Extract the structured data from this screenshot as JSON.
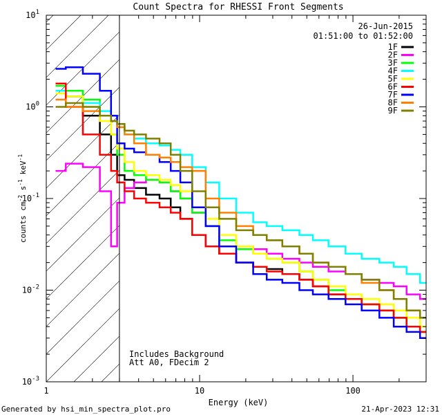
{
  "chart_data": {
    "type": "line",
    "title": "Count Spectra for RHESSI Front Segments",
    "xlabel": "Energy (keV)",
    "ylabel_parts": [
      "counts cm",
      "-2",
      " s",
      "-1",
      " keV",
      "-1"
    ],
    "xscale": "log",
    "yscale": "log",
    "xlim": [
      1,
      300
    ],
    "ylim": [
      0.001,
      10
    ],
    "x_ticks": [
      {
        "value": 1,
        "label": "1"
      },
      {
        "value": 10,
        "label": "10"
      },
      {
        "value": 100,
        "label": "100"
      }
    ],
    "y_ticks": [
      {
        "value": 0.001,
        "base": "10",
        "exp": "-3"
      },
      {
        "value": 0.01,
        "base": "10",
        "exp": "-2"
      },
      {
        "value": 0.1,
        "base": "10",
        "exp": "-1"
      },
      {
        "value": 1,
        "base": "10",
        "exp": "0"
      },
      {
        "value": 10,
        "base": "10",
        "exp": "1"
      }
    ],
    "date": "26-Jun-2015",
    "time_range": "01:51:00 to 01:52:00",
    "annotations": [
      "Includes Background",
      "Att A0, FDecim 2"
    ],
    "hatched_region": [
      1,
      3
    ],
    "x": [
      1.2,
      1.5,
      2,
      2.5,
      2.8,
      3,
      3.5,
      4,
      5,
      6,
      7,
      8,
      10,
      12,
      15,
      20,
      25,
      30,
      40,
      50,
      60,
      80,
      100,
      130,
      170,
      200,
      250,
      300
    ],
    "series": [
      {
        "name": "1F",
        "color": "#000000",
        "values": [
          1.5,
          1.3,
          0.8,
          0.5,
          0.3,
          0.18,
          0.16,
          0.13,
          0.11,
          0.1,
          0.08,
          0.06,
          0.04,
          0.03,
          0.025,
          0.02,
          0.018,
          0.017,
          0.015,
          0.013,
          0.011,
          0.009,
          0.008,
          0.007,
          0.006,
          0.005,
          0.004,
          0.0035
        ]
      },
      {
        "name": "2F",
        "color": "#ff00ff",
        "values": [
          0.2,
          0.24,
          0.22,
          0.12,
          0.03,
          0.09,
          0.13,
          0.15,
          0.16,
          0.15,
          0.12,
          0.1,
          0.07,
          0.05,
          0.03,
          0.03,
          0.028,
          0.025,
          0.022,
          0.02,
          0.018,
          0.016,
          0.015,
          0.013,
          0.012,
          0.011,
          0.009,
          0.008
        ]
      },
      {
        "name": "3F",
        "color": "#00ff00",
        "values": [
          1.7,
          1.5,
          1.2,
          0.8,
          0.5,
          0.3,
          0.2,
          0.18,
          0.16,
          0.15,
          0.12,
          0.1,
          0.07,
          0.05,
          0.035,
          0.028,
          0.025,
          0.022,
          0.02,
          0.016,
          0.013,
          0.01,
          0.008,
          0.007,
          0.006,
          0.005,
          0.004,
          0.0035
        ]
      },
      {
        "name": "4F",
        "color": "#00ffff",
        "values": [
          1.5,
          1.3,
          1.1,
          0.9,
          0.8,
          0.6,
          0.5,
          0.45,
          0.4,
          0.38,
          0.34,
          0.3,
          0.22,
          0.15,
          0.1,
          0.07,
          0.055,
          0.05,
          0.045,
          0.04,
          0.035,
          0.03,
          0.025,
          0.022,
          0.02,
          0.018,
          0.015,
          0.012
        ]
      },
      {
        "name": "5F",
        "color": "#ffff00",
        "values": [
          1.4,
          1.3,
          1.0,
          0.7,
          0.5,
          0.35,
          0.25,
          0.2,
          0.18,
          0.16,
          0.14,
          0.12,
          0.08,
          0.06,
          0.04,
          0.03,
          0.025,
          0.022,
          0.02,
          0.016,
          0.013,
          0.011,
          0.009,
          0.008,
          0.007,
          0.006,
          0.005,
          0.004
        ]
      },
      {
        "name": "6F",
        "color": "#ff0000",
        "values": [
          1.8,
          1.0,
          0.5,
          0.3,
          0.2,
          0.15,
          0.12,
          0.1,
          0.09,
          0.08,
          0.07,
          0.06,
          0.04,
          0.03,
          0.025,
          0.02,
          0.018,
          0.016,
          0.015,
          0.013,
          0.011,
          0.009,
          0.008,
          0.007,
          0.006,
          0.005,
          0.004,
          0.0035
        ]
      },
      {
        "name": "7F",
        "color": "#0000ff",
        "values": [
          2.6,
          2.7,
          2.3,
          1.5,
          0.8,
          0.4,
          0.35,
          0.32,
          0.3,
          0.25,
          0.2,
          0.15,
          0.08,
          0.05,
          0.03,
          0.02,
          0.015,
          0.013,
          0.012,
          0.01,
          0.009,
          0.008,
          0.007,
          0.006,
          0.005,
          0.004,
          0.0035,
          0.003
        ]
      },
      {
        "name": "8F",
        "color": "#ff8000",
        "values": [
          1.2,
          1.0,
          0.9,
          0.8,
          0.7,
          0.6,
          0.5,
          0.4,
          0.3,
          0.28,
          0.25,
          0.22,
          0.2,
          0.1,
          0.07,
          0.05,
          0.04,
          0.035,
          0.03,
          0.025,
          0.02,
          0.018,
          0.015,
          0.012,
          0.01,
          0.008,
          0.006,
          0.005
        ]
      },
      {
        "name": "9F",
        "color": "#808000",
        "values": [
          1.0,
          1.1,
          1.0,
          0.8,
          0.7,
          0.65,
          0.55,
          0.5,
          0.45,
          0.4,
          0.3,
          0.2,
          0.12,
          0.08,
          0.06,
          0.045,
          0.04,
          0.035,
          0.03,
          0.025,
          0.02,
          0.018,
          0.015,
          0.013,
          0.01,
          0.008,
          0.006,
          0.005
        ]
      }
    ]
  },
  "footer": {
    "generated": "Generated by hsi_min_spectra_plot.pro",
    "timestamp": "21-Apr-2023 12:31"
  }
}
